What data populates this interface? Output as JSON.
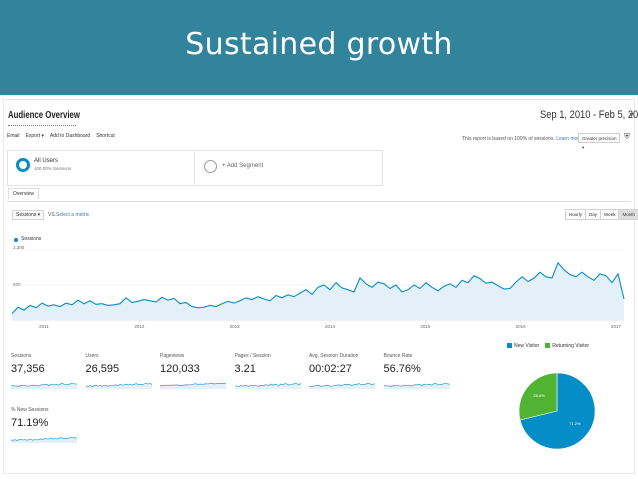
{
  "slide": {
    "title": "Sustained growth"
  },
  "report": {
    "title": "Audience Overview",
    "date_range": "Sep 1, 2010 - Feb 5, 2017",
    "toolbar": [
      "Email",
      "Export ▾",
      "Add to Dashboard",
      "Shortcut"
    ],
    "sample_note": "This report is based on 100% of sessions.",
    "learn_more": "Learn more",
    "precision": "Greater precision ▾"
  },
  "segments": [
    {
      "name": "All Users",
      "sub": "100.00% Sessions"
    },
    {
      "name": "+ Add Segment"
    }
  ],
  "tabs": {
    "overview": "Overview"
  },
  "chart_controls": {
    "metric": "Sessions ▾",
    "vs": "VS.",
    "select_metric": "Select a metric",
    "granularity": [
      "Hourly",
      "Day",
      "Week",
      "Month"
    ],
    "active_granularity": "Month"
  },
  "colors": {
    "accent": "#058dc7",
    "returning": "#50b432",
    "banner": "#31849b"
  },
  "chart_data": {
    "type": "area",
    "series": [
      {
        "name": "Sessions"
      }
    ],
    "y_ticks": [
      "1,200",
      "600"
    ],
    "x_ticks": [
      "2011",
      "2012",
      "2013",
      "2014",
      "2015",
      "2016",
      "2017"
    ],
    "ylim": [
      0,
      1200
    ],
    "values": [
      110,
      220,
      170,
      250,
      210,
      290,
      240,
      260,
      230,
      290,
      260,
      340,
      280,
      330,
      270,
      280,
      250,
      260,
      280,
      380,
      300,
      320,
      350,
      330,
      310,
      390,
      340,
      370,
      280,
      300,
      230,
      210,
      220,
      250,
      230,
      280,
      320,
      290,
      330,
      380,
      350,
      400,
      360,
      330,
      420,
      380,
      430,
      400,
      460,
      520,
      440,
      560,
      600,
      520,
      640,
      550,
      520,
      480,
      720,
      620,
      560,
      650,
      620,
      540,
      600,
      480,
      520,
      600,
      540,
      640,
      560,
      500,
      580,
      620,
      560,
      680,
      640,
      760,
      710,
      630,
      650,
      590,
      530,
      540,
      650,
      740,
      660,
      720,
      820,
      740,
      720,
      980,
      860,
      780,
      740,
      820,
      740,
      680,
      790,
      760,
      640,
      790,
      360
    ],
    "grid": true
  },
  "metrics": [
    {
      "label": "Sessions",
      "value": "37,356"
    },
    {
      "label": "Users",
      "value": "26,595"
    },
    {
      "label": "Pageviews",
      "value": "120,033"
    },
    {
      "label": "Pages / Session",
      "value": "3.21"
    },
    {
      "label": "Avg. Session Duration",
      "value": "00:02:27"
    },
    {
      "label": "Bounce Rate",
      "value": "56.76%"
    },
    {
      "label": "% New Sessions",
      "value": "71.19%"
    }
  ],
  "pie": {
    "legend": [
      "New Visitor",
      "Returning Visitor"
    ],
    "values": [
      71.2,
      28.8
    ],
    "labels": [
      "71.2%",
      "28.8%"
    ]
  }
}
